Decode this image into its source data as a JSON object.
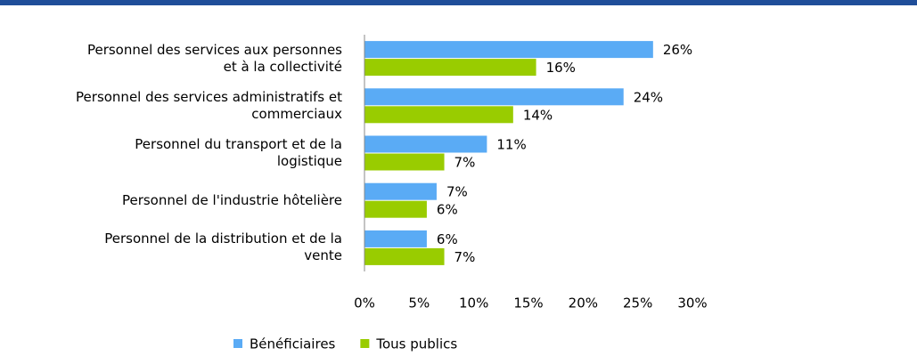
{
  "chart_data": {
    "type": "bar",
    "orientation": "horizontal",
    "categories": [
      "Personnel des services aux personnes\net à la collectivité",
      "Personnel des services administratifs et\ncommerciaux",
      "Personnel du transport et de la\nlogistique",
      "Personnel de l'industrie hôtelière",
      "Personnel de la distribution et de la\nvente"
    ],
    "series": [
      {
        "name": "Bénéficiaires",
        "color": "#5aabf5",
        "values": [
          26.4,
          23.7,
          11.2,
          6.6,
          5.7
        ],
        "value_labels": [
          "26%",
          "24%",
          "11%",
          "7%",
          "6%"
        ]
      },
      {
        "name": "Tous publics",
        "color": "#99cc00",
        "values": [
          15.7,
          13.6,
          7.3,
          5.7,
          7.3
        ],
        "value_labels": [
          "16%",
          "14%",
          "7%",
          "6%",
          "7%"
        ]
      }
    ],
    "xlim": [
      0,
      30
    ],
    "xticks": [
      {
        "value": 0,
        "label": "0%"
      },
      {
        "value": 5,
        "label": "5%"
      },
      {
        "value": 10,
        "label": "10%"
      },
      {
        "value": 15,
        "label": "15%"
      },
      {
        "value": 20,
        "label": "20%"
      },
      {
        "value": 25,
        "label": "25%"
      },
      {
        "value": 30,
        "label": "30%"
      }
    ],
    "legend": "bottom"
  }
}
